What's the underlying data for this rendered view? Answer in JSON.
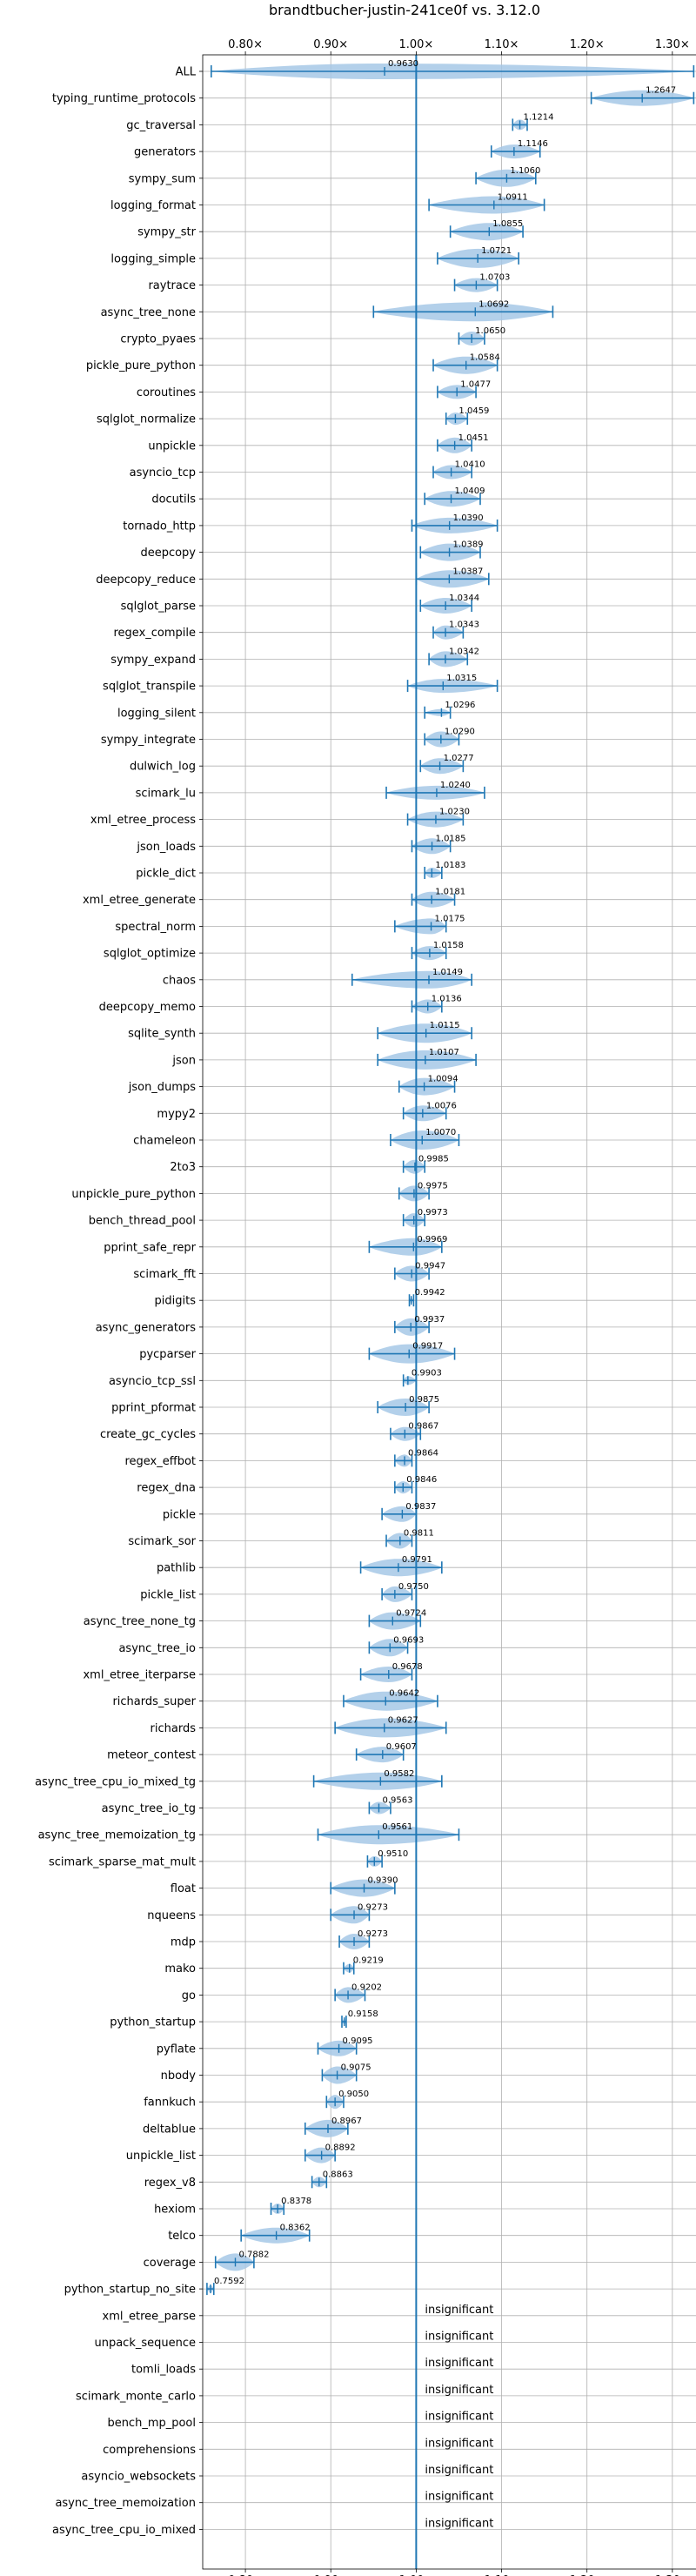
{
  "chart_data": {
    "type": "violin",
    "title": "brandtbucher-justin-241ce0f vs. 3.12.0",
    "xlabel": "",
    "ylabel": "",
    "xlim": [
      0.75,
      1.345
    ],
    "x_ticks": [
      0.8,
      0.9,
      1.0,
      1.1,
      1.2,
      1.3
    ],
    "x_tick_labels": [
      "0.80×",
      "0.90×",
      "1.00×",
      "1.10×",
      "1.20×",
      "1.30×"
    ],
    "reference_line": 1.0,
    "grid": true,
    "colors": {
      "accent": "#1f77b4",
      "violin_fill": "#a6c8e6",
      "grid": "#b0b0b0"
    },
    "insignificant_text": "insignificant",
    "benchmarks": [
      {
        "name": "ALL",
        "label": "0.9630",
        "median": 0.963,
        "min": 0.76,
        "max": 1.325,
        "violin": [
          0.76,
          1.325,
          9
        ]
      },
      {
        "name": "typing_runtime_protocols",
        "label": "1.2647",
        "median": 1.2647,
        "min": 1.205,
        "max": 1.325,
        "violin": [
          1.205,
          1.325,
          9
        ]
      },
      {
        "name": "gc_traversal",
        "label": "1.1214",
        "median": 1.1214,
        "min": 1.113,
        "max": 1.13,
        "violin": [
          1.113,
          1.13,
          6
        ]
      },
      {
        "name": "generators",
        "label": "1.1146",
        "median": 1.1146,
        "min": 1.088,
        "max": 1.145,
        "violin": [
          1.088,
          1.145,
          8
        ]
      },
      {
        "name": "sympy_sum",
        "label": "1.1060",
        "median": 1.106,
        "min": 1.07,
        "max": 1.14,
        "violin": [
          1.07,
          1.14,
          10
        ]
      },
      {
        "name": "logging_format",
        "label": "1.0911",
        "median": 1.0911,
        "min": 1.015,
        "max": 1.15,
        "violin": [
          1.015,
          1.15,
          10
        ]
      },
      {
        "name": "sympy_str",
        "label": "1.0855",
        "median": 1.0855,
        "min": 1.04,
        "max": 1.125,
        "violin": [
          1.04,
          1.125,
          10
        ]
      },
      {
        "name": "logging_simple",
        "label": "1.0721",
        "median": 1.0721,
        "min": 1.025,
        "max": 1.12,
        "violin": [
          1.025,
          1.12,
          11
        ]
      },
      {
        "name": "raytrace",
        "label": "1.0703",
        "median": 1.0703,
        "min": 1.045,
        "max": 1.095,
        "violin": [
          1.045,
          1.095,
          8
        ]
      },
      {
        "name": "async_tree_none",
        "label": "1.0692",
        "median": 1.0692,
        "min": 0.95,
        "max": 1.16,
        "violin": [
          0.95,
          1.16,
          11
        ]
      },
      {
        "name": "crypto_pyaes",
        "label": "1.0650",
        "median": 1.065,
        "min": 1.05,
        "max": 1.08,
        "violin": [
          1.05,
          1.08,
          8
        ]
      },
      {
        "name": "pickle_pure_python",
        "label": "1.0584",
        "median": 1.0584,
        "min": 1.02,
        "max": 1.095,
        "violin": [
          1.02,
          1.095,
          10
        ]
      },
      {
        "name": "coroutines",
        "label": "1.0477",
        "median": 1.0477,
        "min": 1.025,
        "max": 1.07,
        "violin": [
          1.025,
          1.07,
          8
        ]
      },
      {
        "name": "sqlglot_normalize",
        "label": "1.0459",
        "median": 1.0459,
        "min": 1.035,
        "max": 1.06,
        "violin": [
          1.035,
          1.06,
          7
        ]
      },
      {
        "name": "unpickle",
        "label": "1.0451",
        "median": 1.0451,
        "min": 1.025,
        "max": 1.065,
        "violin": [
          1.025,
          1.065,
          9
        ]
      },
      {
        "name": "asyncio_tcp",
        "label": "1.0410",
        "median": 1.041,
        "min": 1.02,
        "max": 1.065,
        "violin": [
          1.02,
          1.065,
          8
        ]
      },
      {
        "name": "docutils",
        "label": "1.0409",
        "median": 1.0409,
        "min": 1.01,
        "max": 1.075,
        "violin": [
          1.01,
          1.075,
          9
        ]
      },
      {
        "name": "tornado_http",
        "label": "1.0390",
        "median": 1.039,
        "min": 0.995,
        "max": 1.095,
        "violin": [
          0.995,
          1.095,
          9
        ]
      },
      {
        "name": "deepcopy",
        "label": "1.0389",
        "median": 1.0389,
        "min": 1.005,
        "max": 1.075,
        "violin": [
          1.005,
          1.075,
          10
        ]
      },
      {
        "name": "deepcopy_reduce",
        "label": "1.0387",
        "median": 1.0387,
        "min": 1.0,
        "max": 1.085,
        "violin": [
          1.0,
          1.085,
          10
        ]
      },
      {
        "name": "sqlglot_parse",
        "label": "1.0344",
        "median": 1.0344,
        "min": 1.005,
        "max": 1.065,
        "violin": [
          1.005,
          1.065,
          9
        ]
      },
      {
        "name": "regex_compile",
        "label": "1.0343",
        "median": 1.0343,
        "min": 1.02,
        "max": 1.055,
        "violin": [
          1.02,
          1.055,
          8
        ]
      },
      {
        "name": "sympy_expand",
        "label": "1.0342",
        "median": 1.0342,
        "min": 1.015,
        "max": 1.06,
        "violin": [
          1.015,
          1.06,
          9
        ]
      },
      {
        "name": "sqlglot_transpile",
        "label": "1.0315",
        "median": 1.0315,
        "min": 0.99,
        "max": 1.095,
        "violin": [
          0.99,
          1.095,
          8
        ]
      },
      {
        "name": "logging_silent",
        "label": "1.0296",
        "median": 1.0296,
        "min": 1.01,
        "max": 1.04,
        "violin": [
          1.01,
          1.04,
          4
        ]
      },
      {
        "name": "sympy_integrate",
        "label": "1.0290",
        "median": 1.029,
        "min": 1.01,
        "max": 1.05,
        "violin": [
          1.01,
          1.05,
          9
        ]
      },
      {
        "name": "dulwich_log",
        "label": "1.0277",
        "median": 1.0277,
        "min": 1.005,
        "max": 1.055,
        "violin": [
          1.005,
          1.055,
          9
        ]
      },
      {
        "name": "scimark_lu",
        "label": "1.0240",
        "median": 1.024,
        "min": 0.965,
        "max": 1.08,
        "violin": [
          0.965,
          1.08,
          8
        ]
      },
      {
        "name": "xml_etree_process",
        "label": "1.0230",
        "median": 1.023,
        "min": 0.99,
        "max": 1.055,
        "violin": [
          0.99,
          1.055,
          9
        ]
      },
      {
        "name": "json_loads",
        "label": "1.0185",
        "median": 1.0185,
        "min": 0.995,
        "max": 1.04,
        "violin": [
          0.995,
          1.04,
          9
        ]
      },
      {
        "name": "pickle_dict",
        "label": "1.0183",
        "median": 1.0183,
        "min": 1.01,
        "max": 1.03,
        "violin": [
          1.01,
          1.03,
          6
        ]
      },
      {
        "name": "xml_etree_generate",
        "label": "1.0181",
        "median": 1.0181,
        "min": 0.995,
        "max": 1.045,
        "violin": [
          0.995,
          1.045,
          9
        ]
      },
      {
        "name": "spectral_norm",
        "label": "1.0175",
        "median": 1.0175,
        "min": 0.975,
        "max": 1.035,
        "violin": [
          0.975,
          1.035,
          9
        ]
      },
      {
        "name": "sqlglot_optimize",
        "label": "1.0158",
        "median": 1.0158,
        "min": 0.995,
        "max": 1.035,
        "violin": [
          0.995,
          1.035,
          8
        ]
      },
      {
        "name": "chaos",
        "label": "1.0149",
        "median": 1.0149,
        "min": 0.925,
        "max": 1.065,
        "violin": [
          0.925,
          1.065,
          10
        ]
      },
      {
        "name": "deepcopy_memo",
        "label": "1.0136",
        "median": 1.0136,
        "min": 0.995,
        "max": 1.03,
        "violin": [
          0.995,
          1.03,
          8
        ]
      },
      {
        "name": "sqlite_synth",
        "label": "1.0115",
        "median": 1.0115,
        "min": 0.955,
        "max": 1.065,
        "violin": [
          0.955,
          1.065,
          11
        ]
      },
      {
        "name": "json",
        "label": "1.0107",
        "median": 1.0107,
        "min": 0.955,
        "max": 1.07,
        "violin": [
          0.955,
          1.07,
          11
        ]
      },
      {
        "name": "json_dumps",
        "label": "1.0094",
        "median": 1.0094,
        "min": 0.98,
        "max": 1.045,
        "violin": [
          0.98,
          1.045,
          10
        ]
      },
      {
        "name": "mypy2",
        "label": "1.0076",
        "median": 1.0076,
        "min": 0.985,
        "max": 1.035,
        "violin": [
          0.985,
          1.035,
          9
        ]
      },
      {
        "name": "chameleon",
        "label": "1.0070",
        "median": 1.007,
        "min": 0.97,
        "max": 1.05,
        "violin": [
          0.97,
          1.05,
          11
        ]
      },
      {
        "name": "2to3",
        "label": "0.9985",
        "median": 0.9985,
        "min": 0.985,
        "max": 1.01,
        "violin": [
          0.985,
          1.01,
          8
        ]
      },
      {
        "name": "unpickle_pure_python",
        "label": "0.9975",
        "median": 0.9975,
        "min": 0.98,
        "max": 1.015,
        "violin": [
          0.98,
          1.015,
          9
        ]
      },
      {
        "name": "bench_thread_pool",
        "label": "0.9973",
        "median": 0.9973,
        "min": 0.985,
        "max": 1.01,
        "violin": [
          0.985,
          1.01,
          8
        ]
      },
      {
        "name": "pprint_safe_repr",
        "label": "0.9969",
        "median": 0.9969,
        "min": 0.945,
        "max": 1.03,
        "violin": [
          0.945,
          1.03,
          10
        ]
      },
      {
        "name": "scimark_fft",
        "label": "0.9947",
        "median": 0.9947,
        "min": 0.975,
        "max": 1.015,
        "violin": [
          0.975,
          1.015,
          9
        ]
      },
      {
        "name": "pidigits",
        "label": "0.9942",
        "median": 0.9942,
        "min": 0.992,
        "max": 0.997,
        "violin": [
          0.992,
          0.997,
          3
        ]
      },
      {
        "name": "async_generators",
        "label": "0.9937",
        "median": 0.9937,
        "min": 0.975,
        "max": 1.015,
        "violin": [
          0.975,
          1.015,
          10
        ]
      },
      {
        "name": "pycparser",
        "label": "0.9917",
        "median": 0.9917,
        "min": 0.945,
        "max": 1.045,
        "violin": [
          0.945,
          1.045,
          11
        ]
      },
      {
        "name": "asyncio_tcp_ssl",
        "label": "0.9903",
        "median": 0.9903,
        "min": 0.985,
        "max": 1.0,
        "violin": [
          0.985,
          1.0,
          5
        ]
      },
      {
        "name": "pprint_pformat",
        "label": "0.9875",
        "median": 0.9875,
        "min": 0.955,
        "max": 1.015,
        "violin": [
          0.955,
          1.015,
          10
        ]
      },
      {
        "name": "create_gc_cycles",
        "label": "0.9867",
        "median": 0.9867,
        "min": 0.97,
        "max": 1.005,
        "violin": [
          0.97,
          1.005,
          8
        ]
      },
      {
        "name": "regex_effbot",
        "label": "0.9864",
        "median": 0.9864,
        "min": 0.975,
        "max": 0.995,
        "violin": [
          0.975,
          0.995,
          7
        ]
      },
      {
        "name": "regex_dna",
        "label": "0.9846",
        "median": 0.9846,
        "min": 0.975,
        "max": 0.995,
        "violin": [
          0.975,
          0.995,
          7
        ]
      },
      {
        "name": "pickle",
        "label": "0.9837",
        "median": 0.9837,
        "min": 0.96,
        "max": 1.0,
        "violin": [
          0.96,
          1.0,
          9
        ]
      },
      {
        "name": "scimark_sor",
        "label": "0.9811",
        "median": 0.9811,
        "min": 0.965,
        "max": 0.995,
        "violin": [
          0.965,
          0.995,
          9
        ]
      },
      {
        "name": "pathlib",
        "label": "0.9791",
        "median": 0.9791,
        "min": 0.935,
        "max": 1.03,
        "violin": [
          0.935,
          1.03,
          10
        ]
      },
      {
        "name": "pickle_list",
        "label": "0.9750",
        "median": 0.975,
        "min": 0.96,
        "max": 0.995,
        "violin": [
          0.96,
          0.995,
          9
        ]
      },
      {
        "name": "async_tree_none_tg",
        "label": "0.9724",
        "median": 0.9724,
        "min": 0.945,
        "max": 1.005,
        "violin": [
          0.945,
          1.005,
          10
        ]
      },
      {
        "name": "async_tree_io",
        "label": "0.9693",
        "median": 0.9693,
        "min": 0.945,
        "max": 0.99,
        "violin": [
          0.945,
          0.99,
          10
        ]
      },
      {
        "name": "xml_etree_iterparse",
        "label": "0.9678",
        "median": 0.9678,
        "min": 0.935,
        "max": 0.995,
        "violin": [
          0.935,
          0.995,
          9
        ]
      },
      {
        "name": "richards_super",
        "label": "0.9642",
        "median": 0.9642,
        "min": 0.915,
        "max": 1.025,
        "violin": [
          0.915,
          1.025,
          11
        ]
      },
      {
        "name": "richards",
        "label": "0.9627",
        "median": 0.9627,
        "min": 0.905,
        "max": 1.035,
        "violin": [
          0.905,
          1.035,
          11
        ]
      },
      {
        "name": "meteor_contest",
        "label": "0.9607",
        "median": 0.9607,
        "min": 0.93,
        "max": 0.985,
        "violin": [
          0.93,
          0.985,
          9
        ]
      },
      {
        "name": "async_tree_cpu_io_mixed_tg",
        "label": "0.9582",
        "median": 0.9582,
        "min": 0.88,
        "max": 1.03,
        "violin": [
          0.88,
          1.03,
          10
        ]
      },
      {
        "name": "async_tree_io_tg",
        "label": "0.9563",
        "median": 0.9563,
        "min": 0.945,
        "max": 0.97,
        "violin": [
          0.945,
          0.97,
          7
        ]
      },
      {
        "name": "async_tree_memoization_tg",
        "label": "0.9561",
        "median": 0.9561,
        "min": 0.885,
        "max": 1.05,
        "violin": [
          0.885,
          1.05,
          11
        ]
      },
      {
        "name": "scimark_sparse_mat_mult",
        "label": "0.9510",
        "median": 0.951,
        "min": 0.943,
        "max": 0.96,
        "violin": [
          0.943,
          0.96,
          6
        ]
      },
      {
        "name": "float",
        "label": "0.9390",
        "median": 0.939,
        "min": 0.9,
        "max": 0.975,
        "violin": [
          0.9,
          0.975,
          10
        ]
      },
      {
        "name": "nqueens",
        "label": "0.9273",
        "median": 0.9273,
        "min": 0.9,
        "max": 0.945,
        "violin": [
          0.9,
          0.945,
          10
        ]
      },
      {
        "name": "mdp",
        "label": "0.9273",
        "median": 0.9273,
        "min": 0.91,
        "max": 0.945,
        "violin": [
          0.91,
          0.945,
          9
        ]
      },
      {
        "name": "mako",
        "label": "0.9219",
        "median": 0.9219,
        "min": 0.915,
        "max": 0.927,
        "violin": [
          0.915,
          0.927,
          5
        ]
      },
      {
        "name": "go",
        "label": "0.9202",
        "median": 0.9202,
        "min": 0.905,
        "max": 0.94,
        "violin": [
          0.905,
          0.94,
          9
        ]
      },
      {
        "name": "python_startup",
        "label": "0.9158",
        "median": 0.9158,
        "min": 0.913,
        "max": 0.918,
        "violin": [
          0.913,
          0.918,
          3
        ]
      },
      {
        "name": "pyflate",
        "label": "0.9095",
        "median": 0.9095,
        "min": 0.885,
        "max": 0.93,
        "violin": [
          0.885,
          0.93,
          9
        ]
      },
      {
        "name": "nbody",
        "label": "0.9075",
        "median": 0.9075,
        "min": 0.89,
        "max": 0.93,
        "violin": [
          0.89,
          0.93,
          10
        ]
      },
      {
        "name": "fannkuch",
        "label": "0.9050",
        "median": 0.905,
        "min": 0.895,
        "max": 0.915,
        "violin": [
          0.895,
          0.915,
          8
        ]
      },
      {
        "name": "deltablue",
        "label": "0.8967",
        "median": 0.8967,
        "min": 0.87,
        "max": 0.92,
        "violin": [
          0.87,
          0.92,
          10
        ]
      },
      {
        "name": "unpickle_list",
        "label": "0.8892",
        "median": 0.8892,
        "min": 0.87,
        "max": 0.905,
        "violin": [
          0.87,
          0.905,
          9
        ]
      },
      {
        "name": "regex_v8",
        "label": "0.8863",
        "median": 0.8863,
        "min": 0.878,
        "max": 0.895,
        "violin": [
          0.878,
          0.895,
          6
        ]
      },
      {
        "name": "hexiom",
        "label": "0.8378",
        "median": 0.8378,
        "min": 0.83,
        "max": 0.845,
        "violin": [
          0.83,
          0.845,
          6
        ]
      },
      {
        "name": "telco",
        "label": "0.8362",
        "median": 0.8362,
        "min": 0.795,
        "max": 0.875,
        "violin": [
          0.795,
          0.875,
          9
        ]
      },
      {
        "name": "coverage",
        "label": "0.7882",
        "median": 0.7882,
        "min": 0.765,
        "max": 0.81,
        "violin": [
          0.765,
          0.81,
          10
        ]
      },
      {
        "name": "python_startup_no_site",
        "label": "0.7592",
        "median": 0.7592,
        "min": 0.755,
        "max": 0.763,
        "violin": [
          0.755,
          0.763,
          4
        ]
      },
      {
        "name": "xml_etree_parse",
        "insignificant": true
      },
      {
        "name": "unpack_sequence",
        "insignificant": true
      },
      {
        "name": "tomli_loads",
        "insignificant": true
      },
      {
        "name": "scimark_monte_carlo",
        "insignificant": true
      },
      {
        "name": "bench_mp_pool",
        "insignificant": true
      },
      {
        "name": "comprehensions",
        "insignificant": true
      },
      {
        "name": "asyncio_websockets",
        "insignificant": true
      },
      {
        "name": "async_tree_memoization",
        "insignificant": true
      },
      {
        "name": "async_tree_cpu_io_mixed",
        "insignificant": true
      }
    ]
  }
}
